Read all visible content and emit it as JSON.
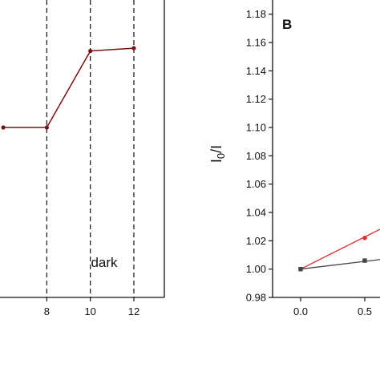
{
  "chart_data": [
    {
      "type": "line",
      "panel": "left",
      "x": [
        6,
        8,
        10,
        12
      ],
      "series": [
        {
          "values": [
            1.1,
            1.1,
            1.154,
            1.156
          ],
          "color": "#7b1010"
        }
      ],
      "xticks": [
        "8",
        "10",
        "12"
      ],
      "xlim": [
        5.85,
        13.4
      ],
      "ylim": [
        0.98,
        1.19
      ],
      "vlines_dashed_at": [
        8,
        10,
        12
      ],
      "annotations": [
        "dark"
      ],
      "grid": false
    },
    {
      "type": "scatter",
      "panel": "B",
      "panel_label": "B",
      "ylabel_main": "I",
      "ylabel_sub": "0",
      "ylabel_rest": "/I",
      "ylim": [
        0.98,
        1.19
      ],
      "yticks": [
        "0.98",
        "1.00",
        "1.02",
        "1.04",
        "1.06",
        "1.08",
        "1.10",
        "1.12",
        "1.14",
        "1.16",
        "1.18"
      ],
      "xlim": [
        -0.4,
        1.1
      ],
      "xticks": [
        "0.0",
        "0.5"
      ],
      "series": [
        {
          "color": "#e03030",
          "marker": "circle",
          "points": [
            [
              0.0,
              1.0
            ],
            [
              0.5,
              1.022
            ]
          ],
          "fit": [
            [
              0.0,
              1.0
            ],
            [
              1.1,
              1.05
            ]
          ]
        },
        {
          "color": "#444444",
          "marker": "square",
          "points": [
            [
              0.0,
              1.0
            ],
            [
              0.5,
              1.006
            ]
          ],
          "fit": [
            [
              0.0,
              1.0
            ],
            [
              1.1,
              1.012
            ]
          ]
        }
      ],
      "grid": false
    }
  ]
}
